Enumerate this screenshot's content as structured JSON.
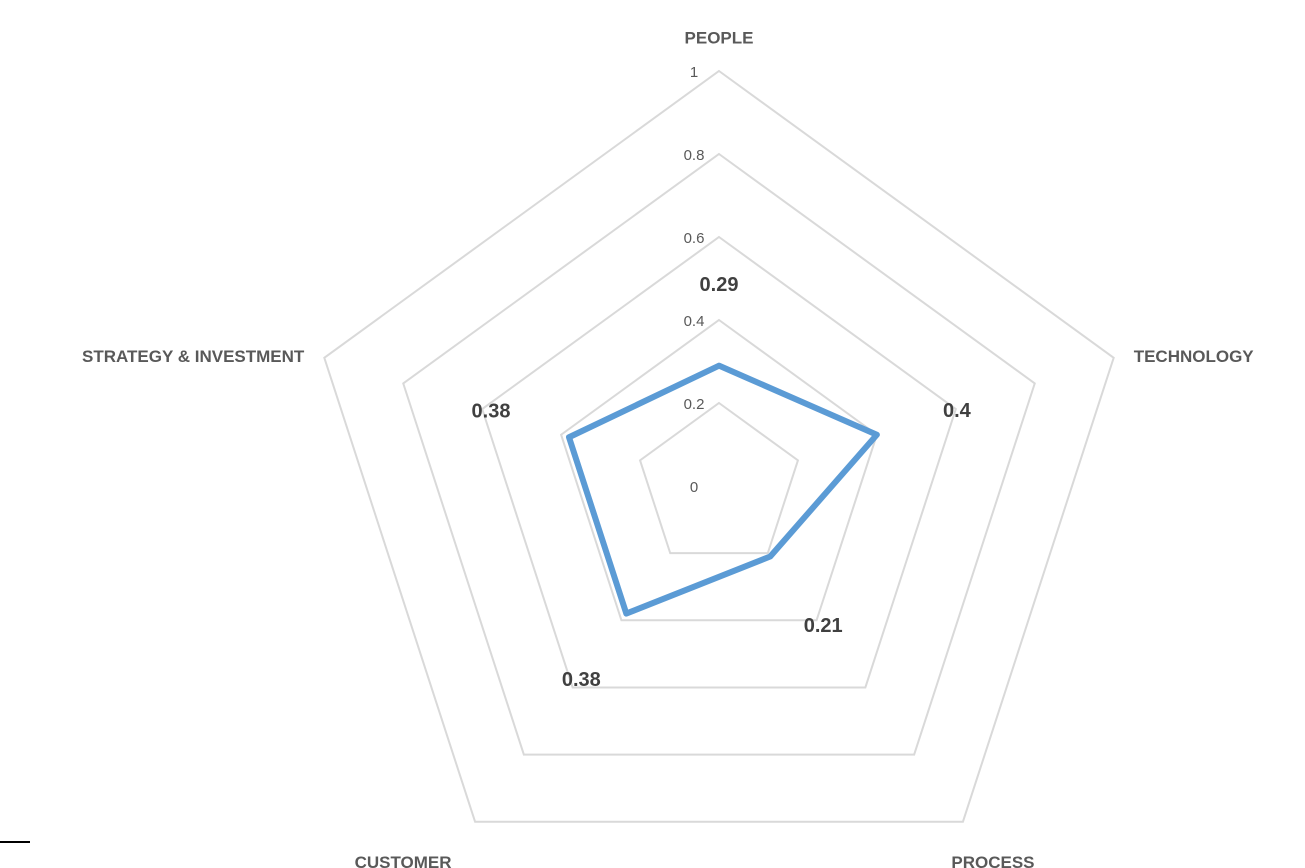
{
  "chart_data": {
    "type": "radar",
    "axes": [
      "PEOPLE",
      "TECHNOLOGY",
      "PROCESS",
      "CUSTOMER",
      "STRATEGY & INVESTMENT"
    ],
    "ticks": [
      "0",
      "0.2",
      "0.4",
      "0.6",
      "0.8",
      "1"
    ],
    "rlim": [
      0,
      1
    ],
    "grid": true,
    "legend": "none",
    "series": [
      {
        "values": [
          0.29,
          0.4,
          0.21,
          0.38,
          0.38
        ],
        "data_labels": [
          "0.29",
          "0.4",
          "0.21",
          "0.38",
          "0.38"
        ],
        "color": "#5b9bd5"
      }
    ]
  },
  "colors": {
    "grid": "#d9d9d9",
    "series": "#5b9bd5",
    "axis_label": "#595959",
    "data_label": "#404040"
  }
}
